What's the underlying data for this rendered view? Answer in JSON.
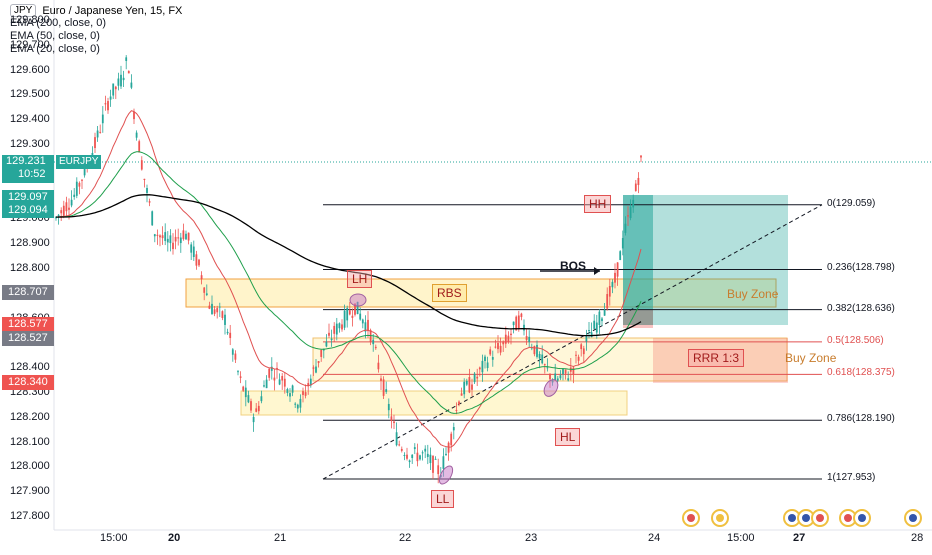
{
  "symbol_badge": "JPY",
  "title": "Euro / Japanese Yen, 15, FX",
  "indicators": [
    "EMA (200, close, 0)",
    "EMA (50, close, 0)",
    "EMA (20, close, 0)"
  ],
  "price_axis": [
    "129.800",
    "129.700",
    "129.600",
    "129.500",
    "129.400",
    "129.300",
    "129.231",
    "129.000",
    "128.900",
    "128.800",
    "128.700",
    "128.600",
    "128.500",
    "128.400",
    "128.300",
    "128.200",
    "128.100",
    "128.000",
    "127.900",
    "127.800"
  ],
  "current_price": {
    "value": "129.231",
    "countdown": "10:52",
    "symbol": "EURJPY"
  },
  "price_tags": [
    {
      "value": "129.097",
      "color": "#26a69a"
    },
    {
      "value": "129.094",
      "color": "#26a69a"
    },
    {
      "value": "128.707",
      "color": "#787b86"
    },
    {
      "value": "128.577",
      "color": "#ef5350"
    },
    {
      "value": "128.527",
      "color": "#787b86"
    },
    {
      "value": "128.340",
      "color": "#ef5350"
    }
  ],
  "time_axis": [
    "15:00",
    "20",
    "21",
    "22",
    "23",
    "24",
    "15:00",
    "27",
    "28"
  ],
  "fib_levels": [
    {
      "label": "0(129.059)",
      "price": 129.059,
      "color": "#131722"
    },
    {
      "label": "0.236(128.798)",
      "price": 128.798,
      "color": "#131722"
    },
    {
      "label": "0.382(128.636)",
      "price": 128.636,
      "color": "#131722"
    },
    {
      "label": "0.5(128.506)",
      "price": 128.506,
      "color": "#e05151"
    },
    {
      "label": "0.618(128.375)",
      "price": 128.375,
      "color": "#e05151"
    },
    {
      "label": "0.786(128.190)",
      "price": 128.19,
      "color": "#131722"
    },
    {
      "label": "1(127.953)",
      "price": 127.953,
      "color": "#131722"
    }
  ],
  "annotations": {
    "hh": "HH",
    "lh": "LH",
    "rbs": "RBS",
    "bos": "BOS",
    "hl": "HL",
    "ll": "LL",
    "buy_zone_1": "Buy Zone",
    "buy_zone_2": "Buy Zone",
    "rrr": "RRR 1:3"
  },
  "colors": {
    "bull": "#26a69a",
    "bear": "#ef5350",
    "ema200": "#000000",
    "ema50": "#1f9f4c",
    "ema20": "#e05151"
  }
}
